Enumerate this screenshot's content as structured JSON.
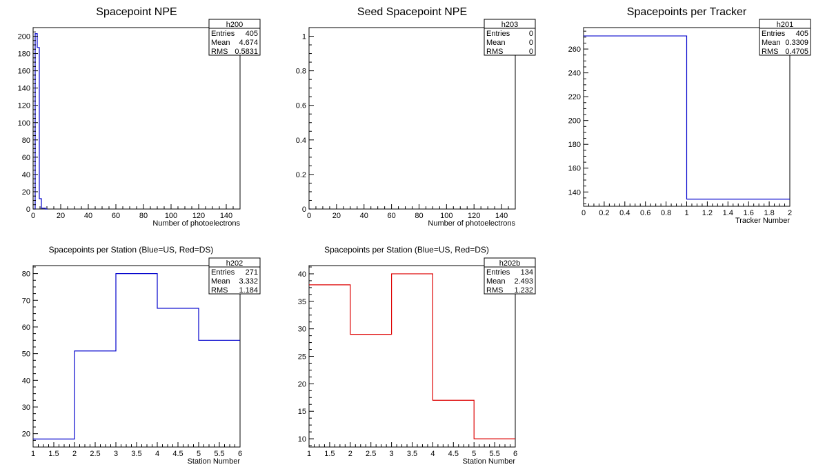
{
  "chart_data": [
    {
      "type": "histogram",
      "title": "Spacepoint NPE",
      "xlabel": "Number of photoelectrons",
      "ylabel": "",
      "xlim": [
        0,
        150
      ],
      "ylim": [
        0,
        210
      ],
      "x_ticks": [
        0,
        20,
        40,
        60,
        80,
        100,
        120,
        140
      ],
      "y_ticks": [
        0,
        20,
        40,
        60,
        80,
        100,
        120,
        140,
        160,
        180,
        200
      ],
      "line_color": "#0000cc",
      "bin_width": 1.5,
      "bins": [
        0,
        1.5,
        3,
        4.5,
        6,
        7.5,
        9
      ],
      "values": [
        0,
        203,
        187,
        12,
        1,
        1,
        0
      ],
      "stats": {
        "name": "h200",
        "rows": [
          [
            "Entries",
            "405"
          ],
          [
            "Mean",
            "4.674"
          ],
          [
            "RMS",
            "0.5831"
          ]
        ]
      }
    },
    {
      "type": "histogram",
      "title": "Seed Spacepoint NPE",
      "xlabel": "Number of photoelectrons",
      "ylabel": "",
      "xlim": [
        0,
        150
      ],
      "ylim": [
        0,
        1.05
      ],
      "x_ticks": [
        0,
        20,
        40,
        60,
        80,
        100,
        120,
        140
      ],
      "y_ticks": [
        0,
        0.2,
        0.4,
        0.6,
        0.8,
        1
      ],
      "line_color": "#0000cc",
      "bin_width": 1.5,
      "bins": [
        0
      ],
      "values": [
        0
      ],
      "stats": {
        "name": "h203",
        "rows": [
          [
            "Entries",
            "0"
          ],
          [
            "Mean",
            "0"
          ],
          [
            "RMS",
            "0"
          ]
        ]
      }
    },
    {
      "type": "histogram",
      "title": "Spacepoints per Tracker",
      "xlabel": "Tracker Number",
      "ylabel": "",
      "xlim": [
        0,
        2
      ],
      "ylim": [
        128,
        278
      ],
      "x_ticks": [
        0,
        0.2,
        0.4,
        0.6,
        0.8,
        1,
        1.2,
        1.4,
        1.6,
        1.8,
        2
      ],
      "y_ticks": [
        140,
        160,
        180,
        200,
        220,
        240,
        260
      ],
      "line_color": "#0000cc",
      "bin_width": 1,
      "bins": [
        0,
        1
      ],
      "values": [
        271,
        134
      ],
      "stats": {
        "name": "h201",
        "rows": [
          [
            "Entries",
            "405"
          ],
          [
            "Mean",
            "0.3309"
          ],
          [
            "RMS",
            "0.4705"
          ]
        ]
      }
    },
    {
      "type": "histogram",
      "title": "Spacepoints per Station (Blue=US, Red=DS)",
      "xlabel": "Station Number",
      "ylabel": "",
      "xlim": [
        1,
        6
      ],
      "ylim": [
        15,
        83
      ],
      "x_ticks": [
        1,
        1.5,
        2,
        2.5,
        3,
        3.5,
        4,
        4.5,
        5,
        5.5,
        6
      ],
      "y_ticks": [
        20,
        30,
        40,
        50,
        60,
        70,
        80
      ],
      "line_color": "#0000cc",
      "bin_width": 1,
      "bins": [
        1,
        2,
        3,
        4,
        5
      ],
      "values": [
        18,
        51,
        80,
        67,
        55
      ],
      "stats": {
        "name": "h202",
        "rows": [
          [
            "Entries",
            "271"
          ],
          [
            "Mean",
            "3.332"
          ],
          [
            "RMS",
            "1.184"
          ]
        ]
      }
    },
    {
      "type": "histogram",
      "title": "Spacepoints per Station (Blue=US, Red=DS)",
      "xlabel": "Station Number",
      "ylabel": "",
      "xlim": [
        1,
        6
      ],
      "ylim": [
        8.5,
        41.5
      ],
      "x_ticks": [
        1,
        1.5,
        2,
        2.5,
        3,
        3.5,
        4,
        4.5,
        5,
        5.5,
        6
      ],
      "y_ticks": [
        10,
        15,
        20,
        25,
        30,
        35,
        40
      ],
      "line_color": "#dd0000",
      "bin_width": 1,
      "bins": [
        1,
        2,
        3,
        4,
        5
      ],
      "values": [
        38,
        29,
        40,
        17,
        10
      ],
      "stats": {
        "name": "h202b",
        "rows": [
          [
            "Entries",
            "134"
          ],
          [
            "Mean",
            "2.493"
          ],
          [
            "RMS",
            "1.232"
          ]
        ]
      }
    }
  ]
}
